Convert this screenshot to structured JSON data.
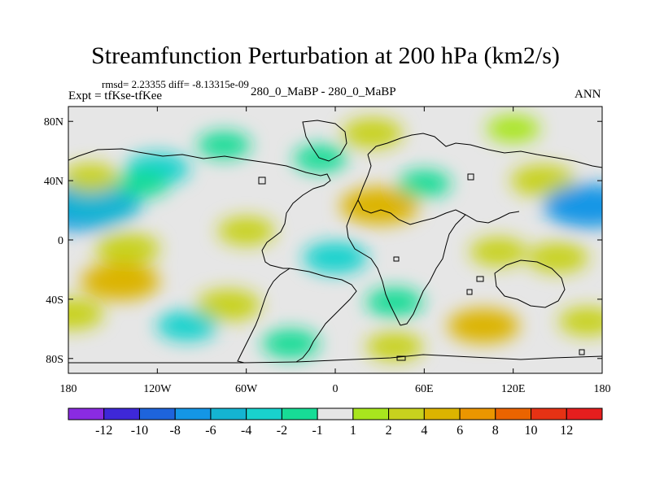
{
  "header": {
    "title": "Streamfunction Perturbation at 200 hPa (km2/s)",
    "stats": "rmsd= 2.23355 diff= -8.13315e-09",
    "experiment": "Expt = tfKse-tfKee",
    "case": "280_0_MaBP - 280_0_MaBP",
    "season": "ANN"
  },
  "chart_data": {
    "type": "heatmap",
    "projection": "cylindrical equidistant",
    "title": "Streamfunction Perturbation at 200 hPa (km2/s)",
    "xlim": [
      -180,
      180
    ],
    "ylim": [
      -90,
      90
    ],
    "x_ticks": [
      -180,
      -120,
      -60,
      0,
      60,
      120,
      180
    ],
    "x_tick_labels": [
      "180",
      "120W",
      "60W",
      "0",
      "60E",
      "120E",
      "180"
    ],
    "y_ticks": [
      80,
      40,
      0,
      -40,
      -80
    ],
    "y_tick_labels": [
      "80N",
      "40N",
      "0",
      "40S",
      "80S"
    ],
    "colorbar": {
      "levels": [
        "-12",
        "-10",
        "-8",
        "-6",
        "-4",
        "-2",
        "-1",
        "1",
        "2",
        "4",
        "6",
        "8",
        "10",
        "12"
      ],
      "colors": [
        "#8a2be2",
        "#3e28d8",
        "#1e64dc",
        "#1496e6",
        "#14b4d2",
        "#19d2cd",
        "#17dc96",
        "#e6e6e6",
        "#a8e61e",
        "#c8d21e",
        "#dcb400",
        "#eb9600",
        "#eb6400",
        "#e63214",
        "#e61e1e"
      ]
    },
    "features": [
      {
        "lon": -172,
        "lat": 22,
        "value": -8
      },
      {
        "lon": -160,
        "lat": 24,
        "value": -6
      },
      {
        "lon": -120,
        "lat": 48,
        "value": -3
      },
      {
        "lon": -130,
        "lat": 38,
        "value": -1.5
      },
      {
        "lon": -165,
        "lat": 42,
        "value": 2
      },
      {
        "lon": -10,
        "lat": 55,
        "value": -1.5
      },
      {
        "lon": -75,
        "lat": 64,
        "value": -1.5
      },
      {
        "lon": 25,
        "lat": 72,
        "value": 2.5
      },
      {
        "lon": 120,
        "lat": 75,
        "value": 1.5
      },
      {
        "lon": 30,
        "lat": 23,
        "value": 5
      },
      {
        "lon": 60,
        "lat": 38,
        "value": -1.5
      },
      {
        "lon": 140,
        "lat": 40,
        "value": 3
      },
      {
        "lon": 172,
        "lat": 23,
        "value": -7
      },
      {
        "lon": -60,
        "lat": 6,
        "value": 2
      },
      {
        "lon": -140,
        "lat": -6,
        "value": 3
      },
      {
        "lon": 0,
        "lat": -12,
        "value": -3
      },
      {
        "lon": 110,
        "lat": -8,
        "value": 2
      },
      {
        "lon": 150,
        "lat": -12,
        "value": 2.5
      },
      {
        "lon": -145,
        "lat": -28,
        "value": 5
      },
      {
        "lon": -72,
        "lat": -44,
        "value": 3
      },
      {
        "lon": 40,
        "lat": -42,
        "value": -2
      },
      {
        "lon": 100,
        "lat": -58,
        "value": 4
      },
      {
        "lon": 170,
        "lat": -55,
        "value": 2
      },
      {
        "lon": -100,
        "lat": -58,
        "value": -2.5
      },
      {
        "lon": -178,
        "lat": -50,
        "value": 3
      },
      {
        "lon": -30,
        "lat": -70,
        "value": -2
      },
      {
        "lon": 40,
        "lat": -72,
        "value": 2
      }
    ]
  }
}
